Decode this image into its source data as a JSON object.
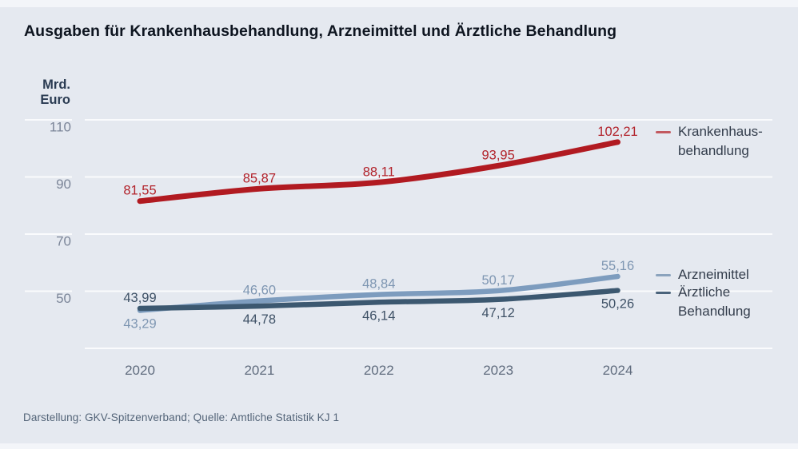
{
  "title": "Ausgaben für Krankenhausbehandlung, Arzneimittel und Ärztliche Behandlung",
  "footer": "Darstellung: GKV-Spitzenverband; Quelle: Amtliche Statistik KJ 1",
  "y_axis": {
    "unit_line1": "Mrd.",
    "unit_line2": "Euro",
    "tick_labels": [
      "110",
      "90",
      "70",
      "50"
    ]
  },
  "x_axis": {
    "tick_labels": [
      "2020",
      "2021",
      "2022",
      "2023",
      "2024"
    ]
  },
  "legend": [
    {
      "lines": [
        "Krankenhaus-",
        "behandlung"
      ],
      "dash_color": "#c2595f"
    },
    {
      "lines": [
        "Arzneimittel"
      ],
      "dash_color": "#8ba3bd"
    },
    {
      "lines": [
        "Ärztliche",
        "Behandlung"
      ],
      "dash_color": "#4a637b"
    }
  ],
  "colors": {
    "background": "#e5e9f0",
    "gridline": "#fafbfd",
    "axis_text": "#7b8598",
    "year_text": "#5f6b7d",
    "krankenhaus_line": "#b11a21",
    "krankenhaus_label": "#b2232b",
    "arzneimittel_line": "#7d9cbe",
    "arzneimittel_label": "#7e96b2",
    "aerztliche_line": "#3c5870",
    "aerztliche_label": "#3e5166"
  },
  "chart_data": {
    "type": "line",
    "title": "Ausgaben für Krankenhausbehandlung, Arzneimittel und Ärztliche Behandlung",
    "xlabel": "",
    "ylabel": "Mrd. Euro",
    "x": [
      2020,
      2021,
      2022,
      2023,
      2024
    ],
    "ylim": [
      30,
      115
    ],
    "gridline_values": [
      110,
      90,
      70,
      50,
      30
    ],
    "labeled_gridlines": [
      110,
      90,
      70,
      50
    ],
    "grid": true,
    "legend_position": "right",
    "series": [
      {
        "name": "Arzneimittel",
        "values": [
          43.29,
          46.6,
          48.84,
          50.17,
          55.16
        ],
        "point_labels": [
          "43,29",
          "46,60",
          "48,84",
          "50,17",
          "55,16"
        ],
        "label_side": [
          "below",
          "above",
          "above",
          "above",
          "above"
        ],
        "color_key": "arzneimittel"
      },
      {
        "name": "Ärztliche Behandlung",
        "values": [
          43.99,
          44.78,
          46.14,
          47.12,
          50.26
        ],
        "point_labels": [
          "43,99",
          "44,78",
          "46,14",
          "47,12",
          "50,26"
        ],
        "label_side": [
          "above",
          "below",
          "below",
          "below",
          "below"
        ],
        "color_key": "aerztliche"
      },
      {
        "name": "Krankenhausbehandlung",
        "values": [
          81.55,
          85.87,
          88.11,
          93.95,
          102.21
        ],
        "point_labels": [
          "81,55",
          "85,87",
          "88,11",
          "93,95",
          "102,21"
        ],
        "label_side": [
          "above",
          "above",
          "above",
          "above",
          "above"
        ],
        "color_key": "krankenhaus"
      }
    ]
  }
}
